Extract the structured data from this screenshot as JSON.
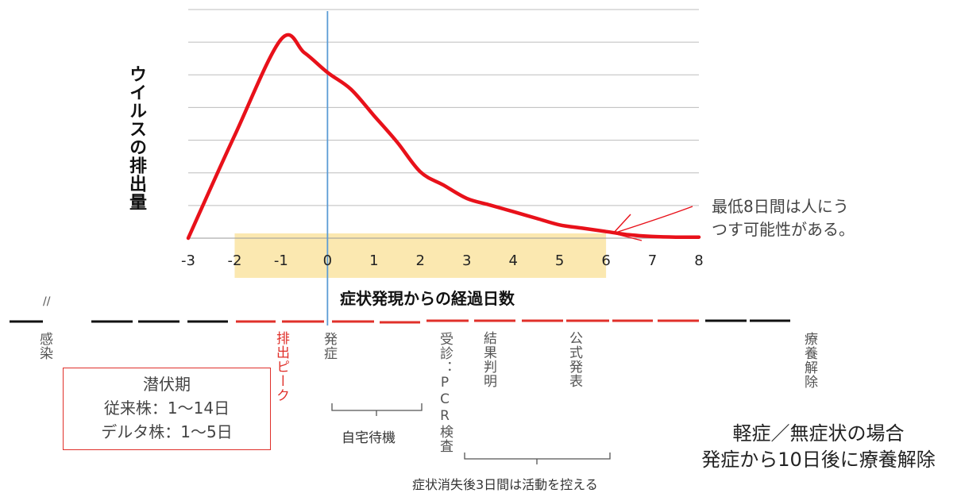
{
  "chart_data": {
    "type": "line",
    "title": "",
    "xlabel": "症状発現からの経過日数",
    "ylabel": "ウイルスの排出量",
    "xlim": [
      -3,
      8
    ],
    "x_ticks": [
      "-3",
      "-2",
      "-1",
      "0",
      "1",
      "2",
      "3",
      "4",
      "5",
      "6",
      "7",
      "8"
    ],
    "grid": true,
    "series_color": "#e8111a",
    "series": [
      {
        "x": [
          -3,
          -2,
          -1,
          -0.5,
          0,
          0.5,
          1,
          1.5,
          2,
          2.5,
          3,
          3.5,
          4,
          4.5,
          5,
          5.5,
          6,
          6.5,
          7,
          7.5,
          8
        ],
        "y": [
          0,
          3.1,
          6.0,
          5.6,
          5.0,
          4.5,
          3.7,
          2.9,
          2.0,
          1.6,
          1.2,
          1.0,
          0.8,
          0.6,
          0.4,
          0.3,
          0.2,
          0.1,
          0.05,
          0.03,
          0.03
        ]
      }
    ],
    "highlight_range": [
      -2,
      6
    ],
    "highlight_color": "#f5c842",
    "marker_day": 0,
    "marker_color": "#5b9bd5"
  },
  "annotation": {
    "note": [
      "最低8日間は人にう",
      "つす可能性がある。"
    ],
    "arrow_color": "#e8111a"
  },
  "timeline": {
    "break_mark": "//",
    "labels": {
      "infection": "感染",
      "peak": "排出ピーク",
      "onset": "発症",
      "consult": "受診：PCR検査",
      "result": "結果判明",
      "announce": "公式発表",
      "release": "療養解除"
    },
    "home_wait": "自宅待機",
    "refrain": "症状消失後3日間は活動を控える",
    "latent": {
      "title": "潜伏期",
      "conventional": "従来株：1〜14日",
      "delta": "デルタ株：1〜5日"
    },
    "summary": [
      "軽症／無症状の場合",
      "発症から10日後に療養解除"
    ],
    "colors": {
      "black": "#111111",
      "red": "#e0302a"
    }
  }
}
